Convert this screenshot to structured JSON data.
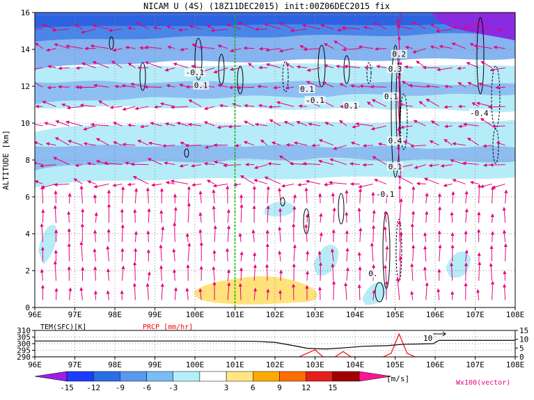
{
  "chart_data": [
    {
      "type": "heatmap",
      "title": "NICAM U (4S) (18Z11DEC2015) init:00Z06DEC2015 fix",
      "xlabel": "",
      "ylabel": "ALTITUDE [km]",
      "x_ticks": [
        "96E",
        "97E",
        "98E",
        "99E",
        "100E",
        "101E",
        "102E",
        "103E",
        "104E",
        "105E",
        "106E",
        "107E",
        "108E"
      ],
      "y_ticks": [
        "0",
        "2",
        "4",
        "6",
        "8",
        "10",
        "12",
        "14",
        "16"
      ],
      "xlim": [
        96,
        108
      ],
      "ylim": [
        0,
        16
      ],
      "marker_line_lon": 101,
      "contour_labels": [
        {
          "text": "-0.1",
          "lon": 100.0,
          "alt": 12.6
        },
        {
          "text": "0.1",
          "lon": 100.15,
          "alt": 11.9
        },
        {
          "text": "0.1",
          "lon": 102.8,
          "alt": 11.7
        },
        {
          "text": "-0.1",
          "lon": 103.0,
          "alt": 11.1
        },
        {
          "text": "0.1",
          "lon": 103.9,
          "alt": 10.8
        },
        {
          "text": "0.1",
          "lon": 104.9,
          "alt": 11.3
        },
        {
          "text": "0.2",
          "lon": 105.1,
          "alt": 13.6
        },
        {
          "text": "0.3",
          "lon": 105.0,
          "alt": 12.8
        },
        {
          "text": "0.4",
          "lon": 105.0,
          "alt": 8.9
        },
        {
          "text": "0.1",
          "lon": 105.0,
          "alt": 7.5
        },
        {
          "text": "-0.1",
          "lon": 104.75,
          "alt": 6.0
        },
        {
          "text": "-0.4",
          "lon": 107.1,
          "alt": 10.4
        },
        {
          "text": "0.",
          "lon": 104.45,
          "alt": 1.7
        }
      ],
      "vector_label": "Wx100(vector)"
    },
    {
      "type": "line",
      "series_labels": [
        "TEM(SFC)[K]",
        "PRCP [mm/hr]"
      ],
      "x_ticks": [
        "96E",
        "97E",
        "98E",
        "99E",
        "100E",
        "101E",
        "102E",
        "103E",
        "104E",
        "105E",
        "106E",
        "107E",
        "108E"
      ],
      "left_ticks": [
        "310",
        "305",
        "300",
        "295",
        "290"
      ],
      "right_ticks": [
        "15",
        "10",
        "5",
        "0"
      ],
      "left_lim": [
        290,
        310
      ],
      "right_lim": [
        0,
        15
      ],
      "annotation": "10",
      "series": [
        {
          "name": "TEM(SFC)[K]",
          "color": "#000000",
          "axis": "left",
          "x": [
            96,
            98,
            100,
            101.5,
            102,
            102.5,
            102.8,
            103,
            103.3,
            103.8,
            104.2,
            104.8,
            105.2,
            105.7,
            105.95,
            106.1,
            107,
            108
          ],
          "values": [
            302,
            302,
            302,
            301.8,
            301,
            298.3,
            296.5,
            296.2,
            296,
            297,
            298,
            298.5,
            299.5,
            299.8,
            300,
            302.5,
            302.5,
            302.5
          ]
        },
        {
          "name": "PRCP [mm/hr]",
          "color": "#ff0000",
          "axis": "right",
          "x": [
            96,
            102.6,
            102.8,
            103,
            103.2,
            103.5,
            103.7,
            103.9,
            104.7,
            104.9,
            105.1,
            105.3,
            105.5,
            108
          ],
          "values": [
            0,
            0,
            2,
            4,
            0,
            0,
            3,
            0,
            0,
            2,
            13,
            2,
            0,
            0
          ]
        }
      ]
    },
    {
      "type": "heatmap",
      "title": "colorbar",
      "tick_labels": [
        "-15",
        "-12",
        "-9",
        "-6",
        "-3",
        "3",
        "6",
        "9",
        "12",
        "15"
      ],
      "unit": "[m/s]",
      "colors": [
        "#9a1ee6",
        "#1e3cff",
        "#2a6ee6",
        "#5a98f0",
        "#78bef5",
        "#b4f0fa",
        "#ffffff",
        "#ffe682",
        "#ffaa00",
        "#ff6e00",
        "#e61e1e",
        "#a00000",
        "#ff1493"
      ]
    }
  ],
  "colors": {
    "marker_line": "#00b400",
    "vector": "#e6007e",
    "shade_dark": "#4a86e8",
    "shade_mid": "#86b4f0",
    "shade_light": "#b6ecf8",
    "shade_warm": "#ffe27a",
    "top_purple": "#8a2be2"
  }
}
